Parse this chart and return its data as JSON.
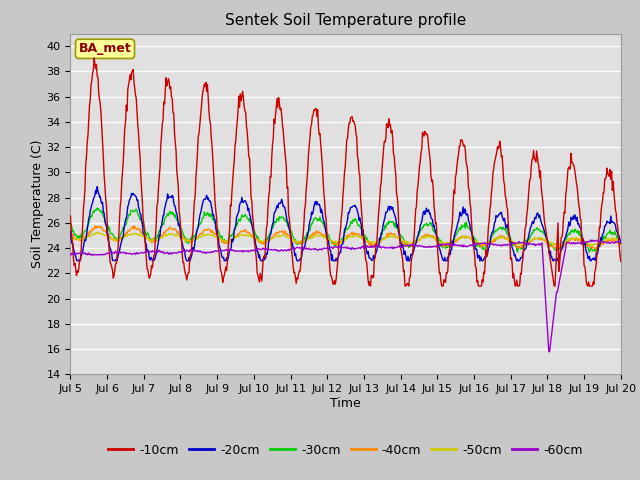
{
  "title": "Sentek Soil Temperature profile",
  "xlabel": "Time",
  "ylabel": "Soil Temperature (C)",
  "ylim": [
    14,
    41
  ],
  "yticks": [
    14,
    16,
    18,
    20,
    22,
    24,
    26,
    28,
    30,
    32,
    34,
    36,
    38,
    40
  ],
  "x_tick_days": [
    5,
    6,
    7,
    8,
    9,
    10,
    11,
    12,
    13,
    14,
    15,
    16,
    17,
    18,
    19,
    20
  ],
  "legend_labels": [
    "-10cm",
    "-20cm",
    "-30cm",
    "-40cm",
    "-50cm",
    "-60cm"
  ],
  "line_colors": [
    "#cc0000",
    "#0000cc",
    "#00cc00",
    "#ff8800",
    "#cccc00",
    "#9900cc"
  ],
  "annotation_text": "BA_met",
  "annotation_color": "#8B0000",
  "annotation_bg": "#ffff99",
  "fig_bg_color": "#c8c8c8",
  "plot_bg_color": "#e0e0e0",
  "grid_color": "#ffffff",
  "figsize": [
    6.4,
    4.8
  ],
  "dpi": 100
}
